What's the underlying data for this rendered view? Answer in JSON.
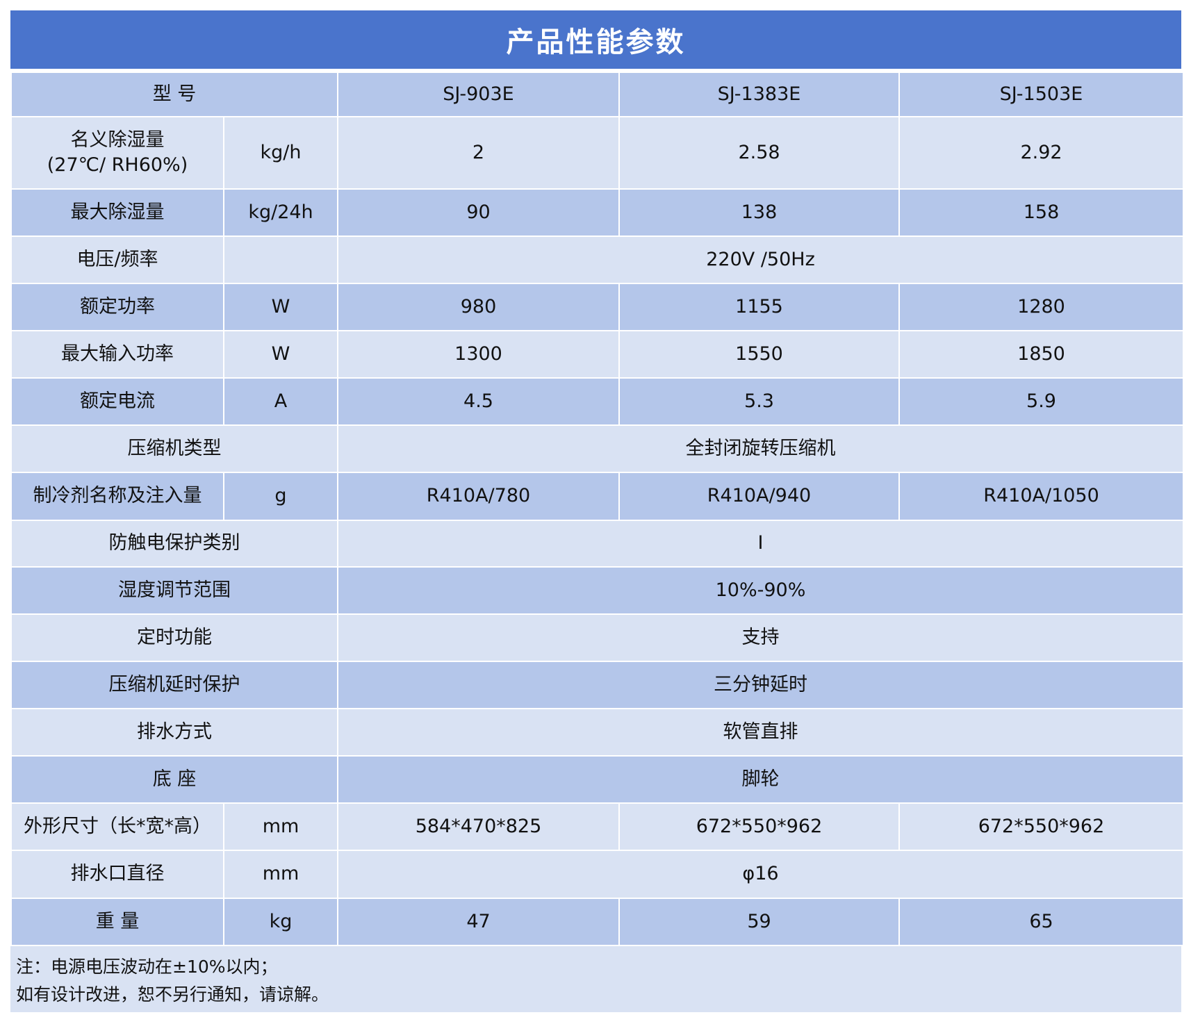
{
  "title": "产品性能参数",
  "colors": {
    "header": "#4a74cc",
    "row_dark": "#b4c6ea",
    "row_light": "#d9e2f3"
  },
  "rows": [
    {
      "label": "型    号",
      "unit": null,
      "values": [
        "SJ-903E",
        "SJ-1383E",
        "SJ-1503E"
      ],
      "tone": "dark"
    },
    {
      "label": "名义除湿量\n(27℃/ RH60%)",
      "unit": "kg/h",
      "values": [
        "2",
        "2.58",
        "2.92"
      ],
      "tone": "light"
    },
    {
      "label": "最大除湿量",
      "unit": "kg/24h",
      "values": [
        "90",
        "138",
        "158"
      ],
      "tone": "dark"
    },
    {
      "label": "电压/频率",
      "unit": "",
      "values": [
        "220V /50Hz"
      ],
      "tone": "light"
    },
    {
      "label": "额定功率",
      "unit": "W",
      "values": [
        "980",
        "1155",
        "1280"
      ],
      "tone": "dark"
    },
    {
      "label": "最大输入功率",
      "unit": "W",
      "values": [
        "1300",
        "1550",
        "1850"
      ],
      "tone": "light"
    },
    {
      "label": "额定电流",
      "unit": "A",
      "values": [
        "4.5",
        "5.3",
        "5.9"
      ],
      "tone": "dark"
    },
    {
      "label": "压缩机类型",
      "unit": null,
      "values": [
        "全封闭旋转压缩机"
      ],
      "tone": "light"
    },
    {
      "label": "制冷剂名称及注入量",
      "unit": "g",
      "values": [
        "R410A/780",
        "R410A/940",
        "R410A/1050"
      ],
      "tone": "dark"
    },
    {
      "label": "防触电保护类别",
      "unit": null,
      "values": [
        "I"
      ],
      "tone": "light"
    },
    {
      "label": "湿度调节范围",
      "unit": null,
      "values": [
        "10%-90%"
      ],
      "tone": "dark"
    },
    {
      "label": "定时功能",
      "unit": null,
      "values": [
        "支持"
      ],
      "tone": "light"
    },
    {
      "label": "压缩机延时保护",
      "unit": null,
      "values": [
        "三分钟延时"
      ],
      "tone": "dark"
    },
    {
      "label": "排水方式",
      "unit": null,
      "values": [
        "软管直排"
      ],
      "tone": "light"
    },
    {
      "label": "底    座",
      "unit": null,
      "values": [
        "脚轮"
      ],
      "tone": "dark"
    },
    {
      "label": "外形尺寸（长*宽*高）",
      "unit": "mm",
      "values": [
        "584*470*825",
        "672*550*962",
        "672*550*962"
      ],
      "tone": "light"
    },
    {
      "label": "排水口直径",
      "unit": "mm",
      "values": [
        "φ16"
      ],
      "tone": "light"
    },
    {
      "label": "重    量",
      "unit": "kg",
      "values": [
        "47",
        "59",
        "65"
      ],
      "tone": "dark"
    }
  ],
  "notes": [
    "注：电源电压波动在±10%以内；",
    "如有设计改进，恕不另行通知，请谅解。"
  ]
}
